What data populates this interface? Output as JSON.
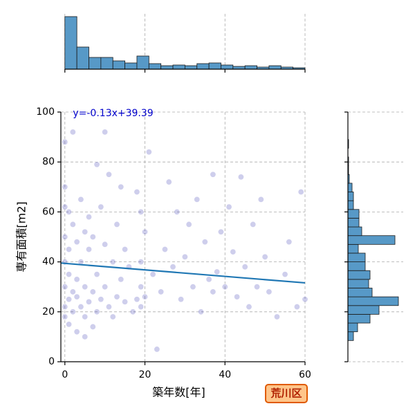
{
  "chart_data": [
    {
      "type": "scatter",
      "xlabel": "築年数[年]",
      "ylabel": "専有面積[m2]",
      "annotation": "y=-0.13x+39.39",
      "annotation_color": "#0000cc",
      "color": "#2222aa",
      "alpha": 0.22,
      "x": [
        0,
        0,
        0,
        0,
        0,
        0,
        0,
        0,
        1,
        1,
        1,
        1,
        1,
        2,
        2,
        2,
        2,
        3,
        3,
        3,
        3,
        4,
        4,
        4,
        5,
        5,
        5,
        5,
        6,
        6,
        6,
        7,
        7,
        7,
        8,
        8,
        8,
        9,
        9,
        10,
        10,
        10,
        11,
        11,
        12,
        12,
        13,
        13,
        14,
        14,
        15,
        15,
        16,
        17,
        18,
        18,
        19,
        19,
        19,
        19,
        20,
        20,
        21,
        22,
        23,
        24,
        25,
        26,
        27,
        28,
        29,
        30,
        31,
        32,
        33,
        34,
        35,
        36,
        37,
        37,
        38,
        39,
        40,
        41,
        42,
        43,
        44,
        45,
        46,
        47,
        48,
        49,
        50,
        51,
        53,
        55,
        56,
        58,
        59,
        60
      ],
      "y": [
        88,
        70,
        62,
        50,
        40,
        30,
        22,
        18,
        60,
        45,
        35,
        25,
        15,
        92,
        55,
        28,
        20,
        48,
        33,
        12,
        26,
        65,
        40,
        22,
        52,
        30,
        18,
        10,
        58,
        24,
        45,
        50,
        28,
        14,
        79,
        35,
        20,
        62,
        25,
        47,
        30,
        92,
        75,
        22,
        40,
        18,
        26,
        55,
        33,
        70,
        24,
        45,
        38,
        20,
        68,
        25,
        60,
        40,
        30,
        22,
        52,
        26,
        84,
        35,
        5,
        28,
        45,
        72,
        38,
        60,
        25,
        42,
        55,
        30,
        65,
        20,
        48,
        33,
        28,
        75,
        36,
        52,
        30,
        62,
        44,
        26,
        74,
        38,
        22,
        55,
        30,
        65,
        42,
        28,
        18,
        35,
        48,
        22,
        68,
        25
      ],
      "regression": {
        "slope": -0.13,
        "intercept": 39.39,
        "color": "#1f77b4"
      },
      "xlim": [
        -1,
        60
      ],
      "ylim": [
        0,
        100
      ],
      "xticks": [
        0,
        20,
        40,
        60
      ],
      "yticks": [
        0,
        20,
        40,
        60,
        80,
        100
      ],
      "grid": true
    },
    {
      "type": "histogram",
      "orientation": "vertical",
      "color": "#5799c7",
      "bins": [
        0,
        3,
        6,
        9,
        12,
        15,
        18,
        21,
        24,
        27,
        30,
        33,
        36,
        39,
        42,
        45,
        48,
        51,
        54,
        57,
        60
      ],
      "counts": [
        76,
        32,
        17,
        17,
        12,
        9,
        19,
        8,
        5,
        6,
        5,
        8,
        9,
        6,
        4,
        5,
        3,
        5,
        3,
        2
      ],
      "ylim": [
        0,
        80
      ]
    },
    {
      "type": "histogram",
      "orientation": "horizontal",
      "color": "#5799c7",
      "bins": [
        8.5,
        12,
        15.5,
        19,
        22.5,
        26,
        29.5,
        33,
        36.5,
        40,
        43.5,
        47,
        50.5,
        54,
        57.5,
        61,
        64.5,
        68,
        71.5,
        75,
        78.5,
        82,
        85.5,
        89,
        92.5,
        96,
        99.5
      ],
      "counts": [
        8,
        14,
        32,
        45,
        73,
        35,
        30,
        32,
        25,
        25,
        15,
        68,
        20,
        16,
        16,
        8,
        8,
        6,
        2,
        1,
        1,
        0,
        1,
        0,
        0,
        0
      ],
      "xlim": [
        0,
        80
      ]
    }
  ],
  "badge": "荒川区"
}
